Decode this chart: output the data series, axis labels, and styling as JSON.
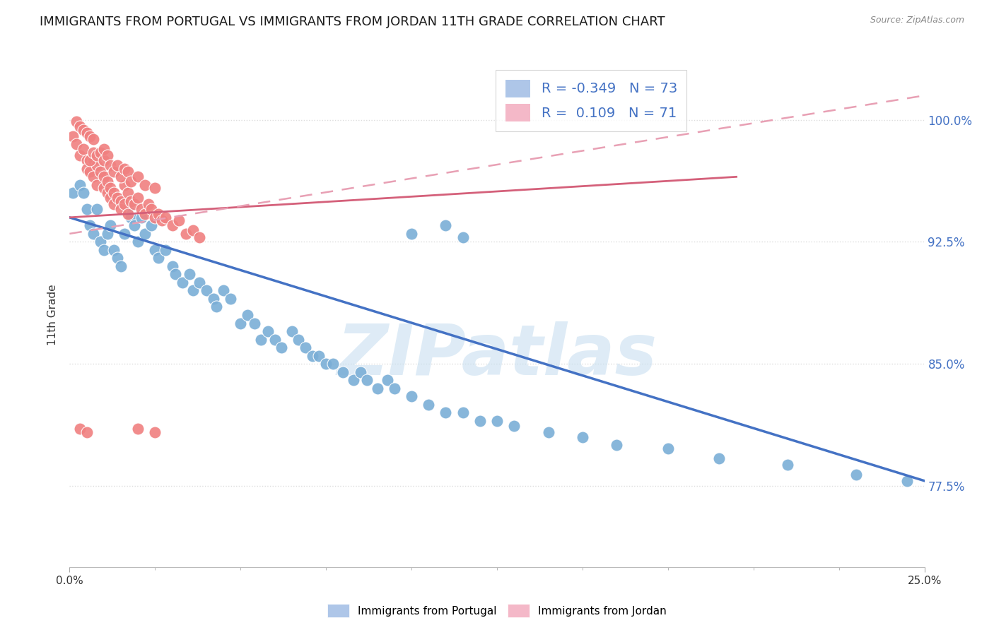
{
  "title": "IMMIGRANTS FROM PORTUGAL VS IMMIGRANTS FROM JORDAN 11TH GRADE CORRELATION CHART",
  "source": "Source: ZipAtlas.com",
  "ylabel": "11th Grade",
  "yticks": [
    "77.5%",
    "85.0%",
    "92.5%",
    "100.0%"
  ],
  "ytick_vals": [
    0.775,
    0.85,
    0.925,
    1.0
  ],
  "xlim": [
    0.0,
    0.25
  ],
  "ylim": [
    0.725,
    1.035
  ],
  "portugal_dots": [
    [
      0.001,
      0.955
    ],
    [
      0.003,
      0.96
    ],
    [
      0.004,
      0.955
    ],
    [
      0.005,
      0.945
    ],
    [
      0.006,
      0.935
    ],
    [
      0.007,
      0.93
    ],
    [
      0.008,
      0.945
    ],
    [
      0.009,
      0.925
    ],
    [
      0.01,
      0.92
    ],
    [
      0.011,
      0.93
    ],
    [
      0.012,
      0.935
    ],
    [
      0.013,
      0.92
    ],
    [
      0.014,
      0.915
    ],
    [
      0.015,
      0.91
    ],
    [
      0.016,
      0.93
    ],
    [
      0.017,
      0.945
    ],
    [
      0.018,
      0.94
    ],
    [
      0.019,
      0.935
    ],
    [
      0.02,
      0.925
    ],
    [
      0.021,
      0.94
    ],
    [
      0.022,
      0.93
    ],
    [
      0.024,
      0.935
    ],
    [
      0.025,
      0.92
    ],
    [
      0.026,
      0.915
    ],
    [
      0.028,
      0.92
    ],
    [
      0.03,
      0.91
    ],
    [
      0.031,
      0.905
    ],
    [
      0.033,
      0.9
    ],
    [
      0.035,
      0.905
    ],
    [
      0.036,
      0.895
    ],
    [
      0.038,
      0.9
    ],
    [
      0.04,
      0.895
    ],
    [
      0.042,
      0.89
    ],
    [
      0.043,
      0.885
    ],
    [
      0.045,
      0.895
    ],
    [
      0.047,
      0.89
    ],
    [
      0.05,
      0.875
    ],
    [
      0.052,
      0.88
    ],
    [
      0.054,
      0.875
    ],
    [
      0.056,
      0.865
    ],
    [
      0.058,
      0.87
    ],
    [
      0.06,
      0.865
    ],
    [
      0.062,
      0.86
    ],
    [
      0.065,
      0.87
    ],
    [
      0.067,
      0.865
    ],
    [
      0.069,
      0.86
    ],
    [
      0.071,
      0.855
    ],
    [
      0.073,
      0.855
    ],
    [
      0.075,
      0.85
    ],
    [
      0.077,
      0.85
    ],
    [
      0.08,
      0.845
    ],
    [
      0.083,
      0.84
    ],
    [
      0.085,
      0.845
    ],
    [
      0.087,
      0.84
    ],
    [
      0.09,
      0.835
    ],
    [
      0.093,
      0.84
    ],
    [
      0.095,
      0.835
    ],
    [
      0.1,
      0.83
    ],
    [
      0.105,
      0.825
    ],
    [
      0.11,
      0.82
    ],
    [
      0.115,
      0.82
    ],
    [
      0.12,
      0.815
    ],
    [
      0.125,
      0.815
    ],
    [
      0.13,
      0.812
    ],
    [
      0.14,
      0.808
    ],
    [
      0.15,
      0.805
    ],
    [
      0.16,
      0.8
    ],
    [
      0.175,
      0.798
    ],
    [
      0.19,
      0.792
    ],
    [
      0.21,
      0.788
    ],
    [
      0.23,
      0.782
    ],
    [
      0.245,
      0.778
    ],
    [
      0.1,
      0.93
    ],
    [
      0.11,
      0.935
    ],
    [
      0.115,
      0.928
    ]
  ],
  "jordan_dots": [
    [
      0.001,
      0.99
    ],
    [
      0.002,
      0.985
    ],
    [
      0.003,
      0.978
    ],
    [
      0.004,
      0.982
    ],
    [
      0.005,
      0.975
    ],
    [
      0.005,
      0.97
    ],
    [
      0.006,
      0.968
    ],
    [
      0.007,
      0.975
    ],
    [
      0.007,
      0.965
    ],
    [
      0.008,
      0.972
    ],
    [
      0.008,
      0.96
    ],
    [
      0.009,
      0.968
    ],
    [
      0.01,
      0.965
    ],
    [
      0.01,
      0.958
    ],
    [
      0.011,
      0.962
    ],
    [
      0.011,
      0.955
    ],
    [
      0.012,
      0.958
    ],
    [
      0.012,
      0.952
    ],
    [
      0.013,
      0.955
    ],
    [
      0.013,
      0.948
    ],
    [
      0.014,
      0.952
    ],
    [
      0.015,
      0.95
    ],
    [
      0.015,
      0.945
    ],
    [
      0.016,
      0.948
    ],
    [
      0.016,
      0.96
    ],
    [
      0.017,
      0.955
    ],
    [
      0.017,
      0.942
    ],
    [
      0.018,
      0.95
    ],
    [
      0.019,
      0.948
    ],
    [
      0.02,
      0.952
    ],
    [
      0.021,
      0.945
    ],
    [
      0.022,
      0.942
    ],
    [
      0.023,
      0.948
    ],
    [
      0.024,
      0.945
    ],
    [
      0.025,
      0.94
    ],
    [
      0.026,
      0.942
    ],
    [
      0.027,
      0.938
    ],
    [
      0.028,
      0.94
    ],
    [
      0.03,
      0.935
    ],
    [
      0.032,
      0.938
    ],
    [
      0.034,
      0.93
    ],
    [
      0.036,
      0.932
    ],
    [
      0.038,
      0.928
    ],
    [
      0.002,
      0.999
    ],
    [
      0.003,
      0.996
    ],
    [
      0.004,
      0.994
    ],
    [
      0.005,
      0.992
    ],
    [
      0.006,
      0.99
    ],
    [
      0.007,
      0.988
    ],
    [
      0.006,
      0.975
    ],
    [
      0.007,
      0.98
    ],
    [
      0.008,
      0.978
    ],
    [
      0.009,
      0.98
    ],
    [
      0.01,
      0.975
    ],
    [
      0.01,
      0.982
    ],
    [
      0.011,
      0.978
    ],
    [
      0.012,
      0.972
    ],
    [
      0.013,
      0.968
    ],
    [
      0.014,
      0.972
    ],
    [
      0.015,
      0.965
    ],
    [
      0.016,
      0.97
    ],
    [
      0.017,
      0.968
    ],
    [
      0.018,
      0.962
    ],
    [
      0.02,
      0.965
    ],
    [
      0.022,
      0.96
    ],
    [
      0.025,
      0.958
    ],
    [
      0.003,
      0.81
    ],
    [
      0.005,
      0.808
    ],
    [
      0.02,
      0.81
    ],
    [
      0.025,
      0.808
    ]
  ],
  "portugal_line_x": [
    0.0,
    0.25
  ],
  "portugal_line_y": [
    0.94,
    0.778
  ],
  "jordan_solid_line_x": [
    0.0,
    0.195
  ],
  "jordan_solid_line_y": [
    0.94,
    0.965
  ],
  "jordan_dashed_line_x": [
    0.0,
    0.25
  ],
  "jordan_dashed_line_y": [
    0.93,
    1.015
  ],
  "dot_color_portugal": "#7aaed6",
  "dot_color_jordan": "#f08080",
  "line_color_portugal": "#4472c4",
  "line_color_jordan_solid": "#d4607a",
  "line_color_jordan_dashed": "#e8a0b4",
  "grid_color": "#dddddd",
  "watermark": "ZIPatlas",
  "watermark_color": "#c8dff0",
  "background_color": "#ffffff",
  "title_fontsize": 13,
  "right_tick_color": "#4472c4"
}
